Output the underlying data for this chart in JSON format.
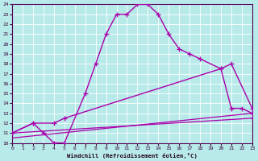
{
  "bg_color": "#b8eaea",
  "line_color": "#aa00aa",
  "grid_color": "#aadddd",
  "xlabel": "Windchill (Refroidissement éolien,°C)",
  "xlim": [
    0,
    23
  ],
  "ylim": [
    10,
    24
  ],
  "xticks": [
    0,
    1,
    2,
    3,
    4,
    5,
    6,
    7,
    8,
    9,
    10,
    11,
    12,
    13,
    14,
    15,
    16,
    17,
    18,
    19,
    20,
    21,
    22,
    23
  ],
  "yticks": [
    10,
    11,
    12,
    13,
    14,
    15,
    16,
    17,
    18,
    19,
    20,
    21,
    22,
    23,
    24
  ],
  "curve1_x": [
    0,
    2,
    3,
    4,
    5,
    7,
    8,
    9,
    10,
    11,
    12,
    13,
    14,
    15,
    16,
    17,
    18,
    20,
    21,
    22,
    23
  ],
  "curve1_y": [
    11,
    12,
    11,
    10,
    10,
    15,
    18,
    21,
    23,
    23,
    24,
    24,
    23,
    21,
    19.5,
    19,
    18.5,
    17.5,
    13.5,
    13.5,
    13
  ],
  "curve2_x": [
    0,
    2,
    4,
    5,
    20,
    21,
    23
  ],
  "curve2_y": [
    11,
    12,
    12,
    12.5,
    17.5,
    18,
    13.5
  ],
  "curve3_x": [
    0,
    23
  ],
  "curve3_y": [
    11,
    12.5
  ],
  "curve4_x": [
    0,
    23
  ],
  "curve4_y": [
    10.5,
    13.0
  ]
}
